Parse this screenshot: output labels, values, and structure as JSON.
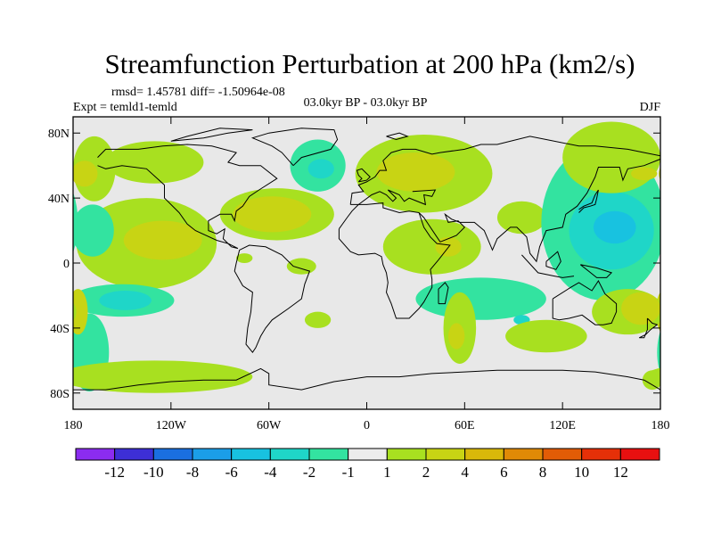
{
  "chart_data": {
    "type": "heatmap",
    "title": "Streamfunction Perturbation at 200 hPa (km2/s)",
    "stats_text": "rmsd= 1.45781 diff= -1.50964e-08",
    "experiment_text": "Expt = temld1-temld",
    "period_text": "03.0kyr BP - 03.0kyr BP",
    "season_text": "DJF",
    "xlabel": "",
    "ylabel": "",
    "xlim": [
      -180,
      180
    ],
    "ylim": [
      -90,
      90
    ],
    "x_ticks": [
      {
        "value": -180,
        "label": "180"
      },
      {
        "value": -120,
        "label": "120W"
      },
      {
        "value": -60,
        "label": "60W"
      },
      {
        "value": 0,
        "label": "0"
      },
      {
        "value": 60,
        "label": "60E"
      },
      {
        "value": 120,
        "label": "120E"
      },
      {
        "value": 180,
        "label": "180"
      }
    ],
    "y_ticks": [
      {
        "value": 80,
        "label": "80N"
      },
      {
        "value": 40,
        "label": "40N"
      },
      {
        "value": 0,
        "label": "0"
      },
      {
        "value": -40,
        "label": "40S"
      },
      {
        "value": -80,
        "label": "80S"
      }
    ],
    "colorbar": {
      "labels": [
        "-12",
        "-10",
        "-8",
        "-6",
        "-4",
        "-2",
        "-1",
        "1",
        "2",
        "4",
        "6",
        "8",
        "10",
        "12"
      ],
      "colors": [
        "#8b2cf0",
        "#3d2fd6",
        "#1a6fe0",
        "#1b9ee8",
        "#18c2e0",
        "#1fd6c8",
        "#33e3a0",
        "#ececec",
        "#a8e020",
        "#c8d414",
        "#d9b80a",
        "#e08a06",
        "#e25c06",
        "#e53008",
        "#e81010"
      ]
    },
    "regions": [
      {
        "lon": -130,
        "lat": 62,
        "rlon": 30,
        "rlat": 13,
        "value": 1.5
      },
      {
        "lon": -167,
        "lat": 58,
        "rlon": 13,
        "rlat": 20,
        "value": 1.5
      },
      {
        "lon": -173,
        "lat": 55,
        "rlon": 8,
        "rlat": 8,
        "value": 2.5
      },
      {
        "lon": -135,
        "lat": 12,
        "rlon": 43,
        "rlat": 28,
        "value": 1.5
      },
      {
        "lon": -125,
        "lat": 14,
        "rlon": 24,
        "rlat": 12,
        "value": 2.5
      },
      {
        "lon": -168,
        "lat": 20,
        "rlon": 13,
        "rlat": 16,
        "value": -1.5
      },
      {
        "lon": -55,
        "lat": 30,
        "rlon": 35,
        "rlat": 16,
        "value": 1.5
      },
      {
        "lon": -58,
        "lat": 30,
        "rlon": 24,
        "rlat": 11,
        "value": 2.5
      },
      {
        "lon": -30,
        "lat": 60,
        "rlon": 17,
        "rlat": 16,
        "value": -1.5
      },
      {
        "lon": -28,
        "lat": 58,
        "rlon": 8,
        "rlat": 6,
        "value": -2.5
      },
      {
        "lon": 35,
        "lat": 55,
        "rlon": 42,
        "rlat": 24,
        "value": 1.5
      },
      {
        "lon": 30,
        "lat": 56,
        "rlon": 24,
        "rlat": 12,
        "value": 2.5
      },
      {
        "lon": 95,
        "lat": 28,
        "rlon": 15,
        "rlat": 10,
        "value": 1.5
      },
      {
        "lon": 145,
        "lat": 25,
        "rlon": 38,
        "rlat": 48,
        "value": -1.5
      },
      {
        "lon": 150,
        "lat": 20,
        "rlon": 26,
        "rlat": 24,
        "value": -2.5
      },
      {
        "lon": 152,
        "lat": 22,
        "rlon": 13,
        "rlat": 10,
        "value": -4.5
      },
      {
        "lon": 150,
        "lat": 65,
        "rlon": 30,
        "rlat": 22,
        "value": 1.5
      },
      {
        "lon": 170,
        "lat": 55,
        "rlon": 8,
        "rlat": 4,
        "value": 2.5
      },
      {
        "lon": -150,
        "lat": -23,
        "rlon": 32,
        "rlat": 10,
        "value": -1.5
      },
      {
        "lon": -148,
        "lat": -23,
        "rlon": 16,
        "rlat": 6,
        "value": -2.5
      },
      {
        "lon": -170,
        "lat": -55,
        "rlon": 12,
        "rlat": 24,
        "value": -1.5
      },
      {
        "lon": -177,
        "lat": -30,
        "rlon": 6,
        "rlat": 14,
        "value": 2.5
      },
      {
        "lon": -130,
        "lat": -70,
        "rlon": 60,
        "rlat": 10,
        "value": 1.5
      },
      {
        "lon": -40,
        "lat": -2,
        "rlon": 9,
        "rlat": 5,
        "value": 1.5
      },
      {
        "lon": -75,
        "lat": 3,
        "rlon": 5,
        "rlat": 3,
        "value": 1.5
      },
      {
        "lon": -30,
        "lat": -35,
        "rlon": 8,
        "rlat": 5,
        "value": 1.5
      },
      {
        "lon": 40,
        "lat": 10,
        "rlon": 30,
        "rlat": 17,
        "value": 1.5
      },
      {
        "lon": 50,
        "lat": 10,
        "rlon": 8,
        "rlat": 6,
        "value": 2.5
      },
      {
        "lon": 70,
        "lat": -22,
        "rlon": 40,
        "rlat": 13,
        "value": -1.5
      },
      {
        "lon": 95,
        "lat": -35,
        "rlon": 5,
        "rlat": 3,
        "value": -2.5
      },
      {
        "lon": 57,
        "lat": -40,
        "rlon": 10,
        "rlat": 22,
        "value": 1.5
      },
      {
        "lon": 55,
        "lat": -45,
        "rlon": 5,
        "rlat": 8,
        "value": 2.5
      },
      {
        "lon": 110,
        "lat": -45,
        "rlon": 25,
        "rlat": 10,
        "value": 1.5
      },
      {
        "lon": 160,
        "lat": -30,
        "rlon": 22,
        "rlat": 14,
        "value": 1.5
      },
      {
        "lon": 168,
        "lat": -28,
        "rlon": 12,
        "rlat": 10,
        "value": 2.5
      },
      {
        "lon": 175,
        "lat": -72,
        "rlon": 6,
        "rlat": 6,
        "value": 1.5
      }
    ]
  }
}
